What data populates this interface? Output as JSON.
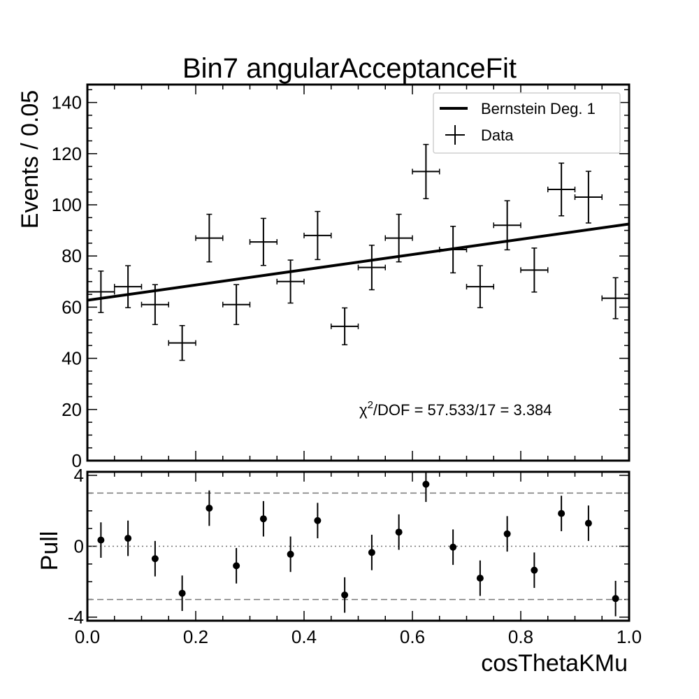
{
  "chart_data": [
    {
      "type": "line",
      "title": "Bin7 angularAcceptanceFit",
      "xlabel": "",
      "ylabel": "Events / 0.05",
      "xlim": [
        0.0,
        1.0
      ],
      "ylim": [
        0,
        147
      ],
      "yticks": [
        0,
        20,
        40,
        60,
        80,
        100,
        120,
        140
      ],
      "legend": {
        "placement": "top-right",
        "entries": [
          "Bernstein Deg. 1",
          "Data"
        ]
      },
      "annotation": {
        "prefix": "χ",
        "sup": "2",
        "suffix": "/DOF = 57.533/17 = 3.384"
      },
      "fit": {
        "name": "Bernstein Deg. 1",
        "x": [
          0.0,
          1.0
        ],
        "y": [
          62.7,
          92.5
        ]
      },
      "data": {
        "name": "Data",
        "xerr": 0.025,
        "x": [
          0.025,
          0.075,
          0.125,
          0.175,
          0.225,
          0.275,
          0.325,
          0.375,
          0.425,
          0.475,
          0.525,
          0.575,
          0.625,
          0.675,
          0.725,
          0.775,
          0.825,
          0.875,
          0.925,
          0.975
        ],
        "y": [
          66,
          68,
          61,
          46,
          87,
          61,
          85.5,
          70,
          88,
          52.5,
          75.5,
          87,
          113,
          82.5,
          68,
          92,
          74.5,
          106,
          103,
          63.5
        ],
        "yerr": [
          8.1,
          8.2,
          7.8,
          6.8,
          9.3,
          7.8,
          9.2,
          8.4,
          9.4,
          7.2,
          8.7,
          9.3,
          10.6,
          9.1,
          8.2,
          9.6,
          8.6,
          10.3,
          10.1,
          8.0
        ]
      }
    },
    {
      "type": "scatter",
      "xlabel": "cosThetaKMu",
      "ylabel": "Pull",
      "xlim": [
        0.0,
        1.0
      ],
      "ylim": [
        -4.2,
        4.2
      ],
      "xticks": [
        "0.0",
        "0.2",
        "0.4",
        "0.6",
        "0.8",
        "1.0"
      ],
      "yticks": [
        -4,
        0,
        4
      ],
      "reference_lines": {
        "dotted": [
          0
        ],
        "dashed": [
          -3,
          3
        ]
      },
      "x": [
        0.025,
        0.075,
        0.125,
        0.175,
        0.225,
        0.275,
        0.325,
        0.375,
        0.425,
        0.475,
        0.525,
        0.575,
        0.625,
        0.675,
        0.725,
        0.775,
        0.825,
        0.875,
        0.925,
        0.975
      ],
      "y": [
        0.35,
        0.45,
        -0.7,
        -2.65,
        2.15,
        -1.1,
        1.55,
        -0.45,
        1.45,
        -2.75,
        -0.35,
        0.8,
        3.5,
        -0.05,
        -1.8,
        0.7,
        -1.35,
        1.85,
        1.3,
        -2.95
      ],
      "yerr": 1.0
    }
  ]
}
